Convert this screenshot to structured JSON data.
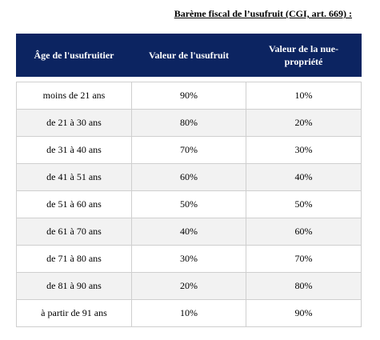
{
  "header": {
    "title": "Barème fiscal de l’usufruit (CGI, art. 669) :"
  },
  "table": {
    "columns": [
      "Âge de l'usufruitier",
      "Valeur de l'usufruit",
      "Valeur de la nue-propriété"
    ],
    "rows": [
      [
        "moins de 21 ans",
        "90%",
        "10%"
      ],
      [
        "de 21 à 30 ans",
        "80%",
        "20%"
      ],
      [
        "de 31 à 40 ans",
        "70%",
        "30%"
      ],
      [
        "de 41 à 51 ans",
        "60%",
        "40%"
      ],
      [
        "de 51 à 60 ans",
        "50%",
        "50%"
      ],
      [
        "de 61 à 70 ans",
        "40%",
        "60%"
      ],
      [
        "de 71 à 80 ans",
        "30%",
        "70%"
      ],
      [
        "de 81 à 90 ans",
        "20%",
        "80%"
      ],
      [
        "à partir de 91 ans",
        "10%",
        "90%"
      ]
    ]
  }
}
